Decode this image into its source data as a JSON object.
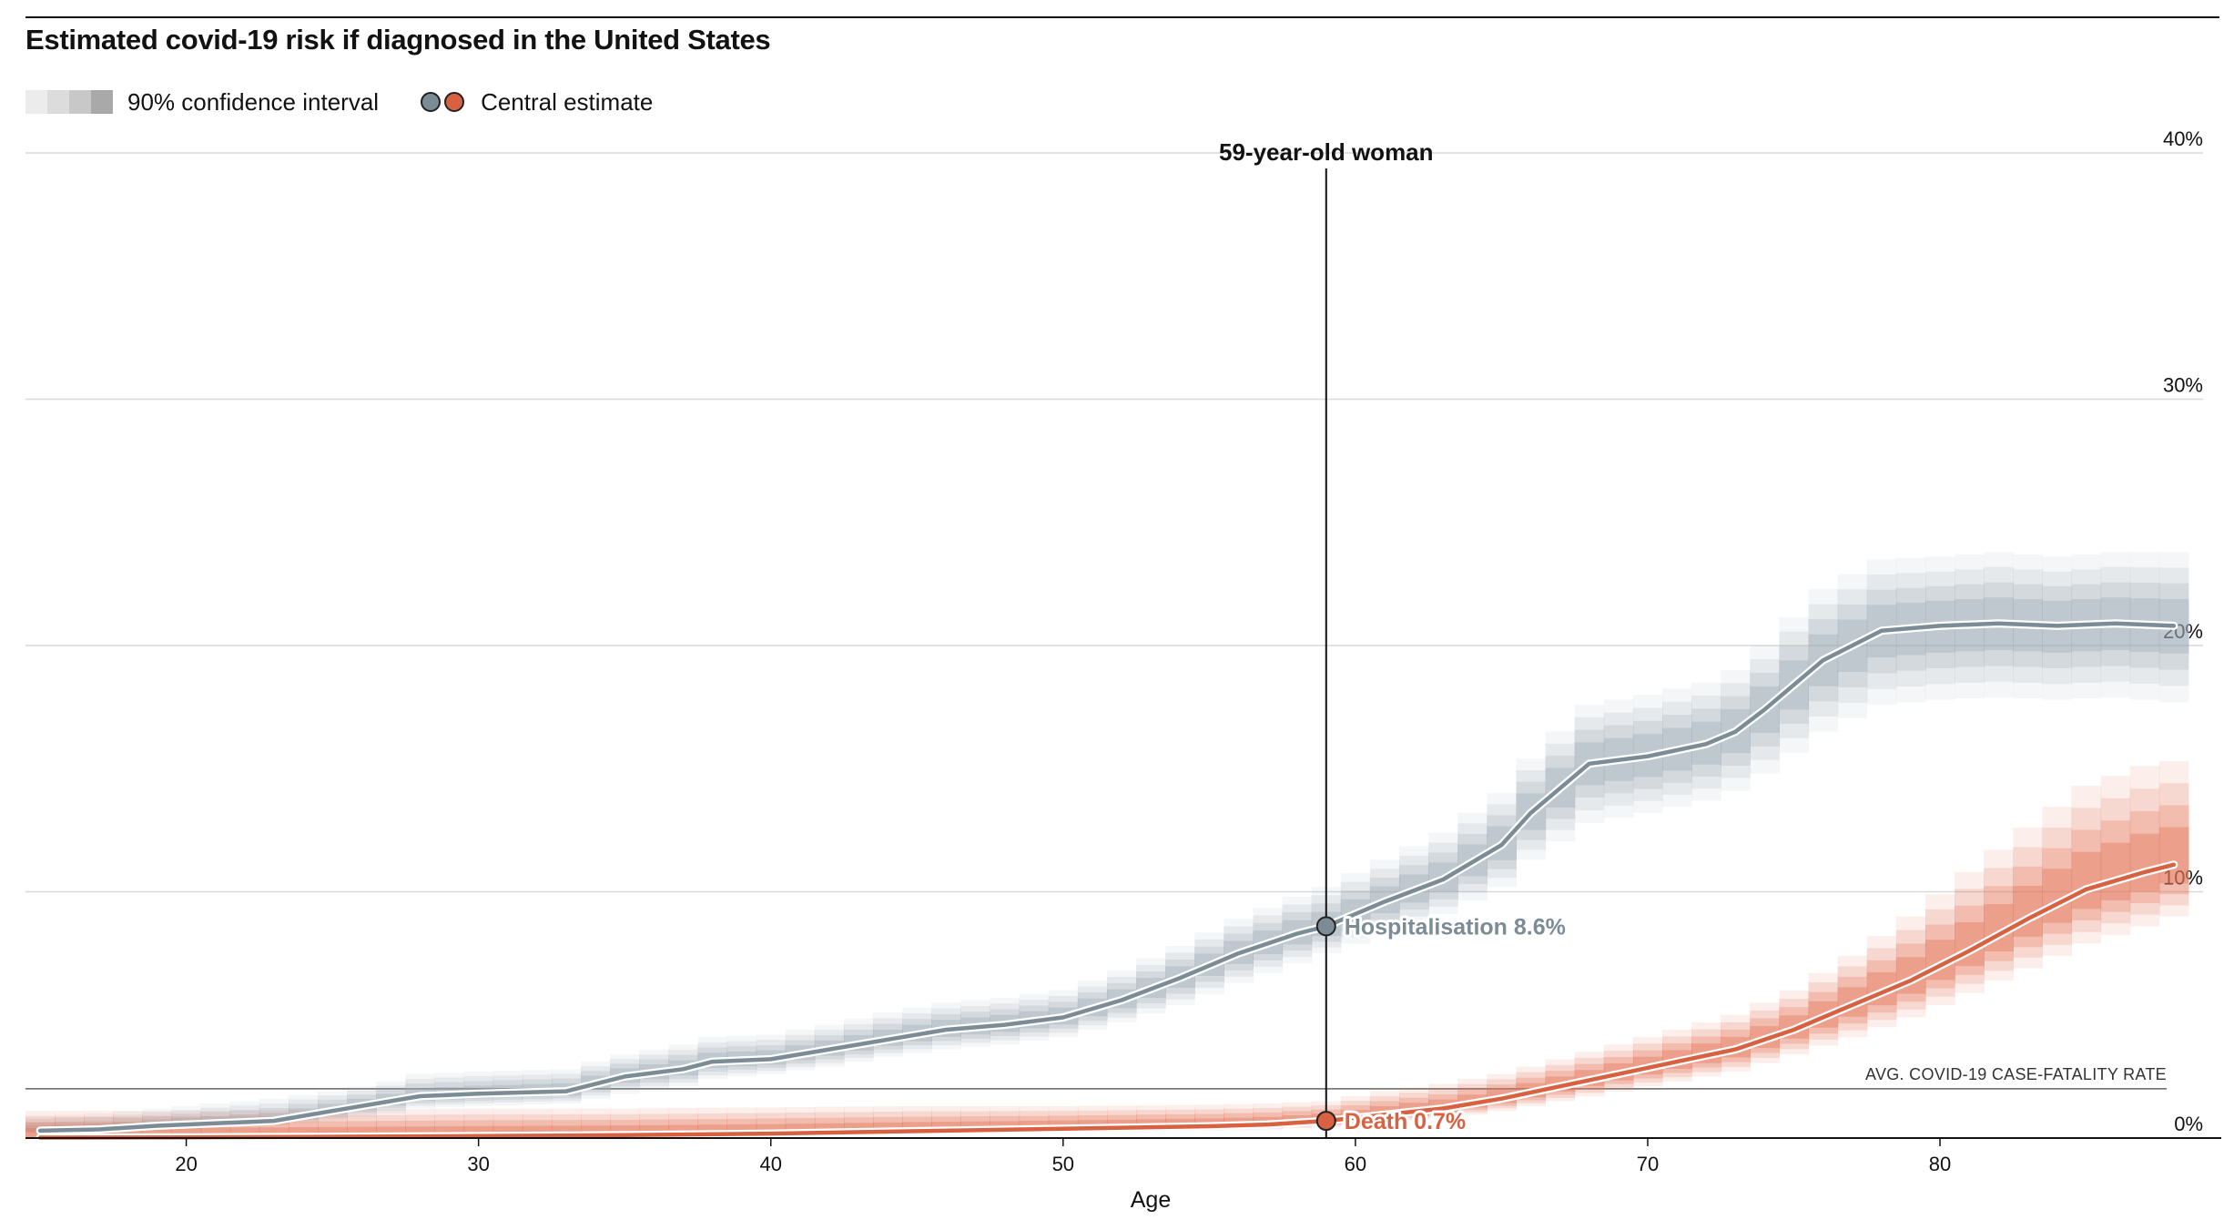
{
  "chart_data": {
    "type": "line",
    "title": "Estimated covid-19 risk if diagnosed in the United States",
    "xlabel": "Age",
    "ylabel": "",
    "xlim": [
      14.5,
      89
    ],
    "ylim": [
      0,
      40
    ],
    "x_ticks": [
      20,
      30,
      40,
      50,
      60,
      70,
      80
    ],
    "x_tick_labels": [
      "20",
      "30",
      "40",
      "50",
      "60",
      "70",
      "80"
    ],
    "y_ticks": [
      0,
      10,
      20,
      30,
      40
    ],
    "y_tick_labels": [
      "0%",
      "10%",
      "20%",
      "30%",
      "40%"
    ],
    "grid": "horizontal",
    "legend": {
      "position": "top-left",
      "ci_label": "90% confidence interval",
      "central_label": "Central estimate"
    },
    "marker": {
      "age": 59,
      "label": "59-year-old woman"
    },
    "reference_line": {
      "value": 2.0,
      "label": "AVG. COVID-19 CASE-FATALITY RATE"
    },
    "series": [
      {
        "name": "Hospitalisation",
        "annotation": "Hospitalisation 8.6%",
        "color": "#7b8c97",
        "band_color": "#9aa8b2",
        "x": [
          15,
          17,
          19,
          21,
          23,
          25,
          27,
          28,
          30,
          33,
          35,
          37,
          38,
          40,
          42,
          44,
          46,
          48,
          50,
          52,
          54,
          56,
          58,
          59,
          61,
          63,
          65,
          66,
          68,
          70,
          72,
          73,
          74,
          76,
          78,
          80,
          82,
          84,
          86,
          88
        ],
        "y": [
          0.3,
          0.35,
          0.5,
          0.6,
          0.7,
          1.1,
          1.5,
          1.7,
          1.8,
          1.9,
          2.5,
          2.8,
          3.1,
          3.2,
          3.6,
          4.0,
          4.4,
          4.6,
          4.9,
          5.6,
          6.5,
          7.5,
          8.3,
          8.6,
          9.6,
          10.5,
          11.9,
          13.2,
          15.2,
          15.5,
          16.0,
          16.5,
          17.4,
          19.4,
          20.6,
          20.8,
          20.9,
          20.8,
          20.9,
          20.8
        ],
        "ci_low": [
          0.2,
          0.2,
          0.3,
          0.4,
          0.5,
          0.7,
          1.0,
          1.2,
          1.3,
          1.4,
          1.8,
          2.1,
          2.4,
          2.6,
          2.9,
          3.3,
          3.6,
          3.8,
          4.1,
          4.7,
          5.4,
          6.3,
          7.1,
          7.5,
          8.3,
          9.1,
          10.2,
          11.3,
          12.8,
          13.2,
          13.7,
          14.1,
          14.8,
          16.5,
          17.6,
          17.8,
          17.9,
          17.8,
          17.9,
          17.7
        ],
        "ci_high": [
          0.9,
          1.0,
          1.2,
          1.4,
          1.6,
          1.9,
          2.3,
          2.6,
          2.7,
          2.8,
          3.4,
          3.8,
          4.1,
          4.2,
          4.6,
          5.1,
          5.5,
          5.7,
          6.0,
          6.8,
          7.8,
          8.9,
          9.8,
          10.2,
          11.3,
          12.4,
          14.0,
          15.4,
          17.6,
          18.0,
          18.5,
          19.0,
          20.0,
          22.3,
          23.5,
          23.6,
          23.8,
          23.6,
          23.8,
          23.8
        ]
      },
      {
        "name": "Death",
        "annotation": "Death 0.7%",
        "color": "#d86142",
        "band_color": "#e5765a",
        "x": [
          15,
          20,
          25,
          30,
          35,
          40,
          45,
          50,
          55,
          57,
          59,
          61,
          63,
          65,
          67,
          69,
          71,
          73,
          75,
          77,
          79,
          81,
          83,
          85,
          87,
          88
        ],
        "y": [
          0.02,
          0.03,
          0.05,
          0.08,
          0.12,
          0.18,
          0.28,
          0.38,
          0.48,
          0.55,
          0.7,
          0.95,
          1.2,
          1.6,
          2.1,
          2.6,
          3.1,
          3.6,
          4.4,
          5.4,
          6.4,
          7.6,
          8.9,
          10.1,
          10.8,
          11.1
        ],
        "ci_low": [
          0.0,
          0.01,
          0.02,
          0.04,
          0.06,
          0.1,
          0.16,
          0.23,
          0.3,
          0.35,
          0.45,
          0.62,
          0.8,
          1.1,
          1.5,
          1.9,
          2.3,
          2.7,
          3.4,
          4.1,
          4.9,
          5.9,
          6.9,
          7.9,
          8.6,
          9.0
        ],
        "ci_high": [
          1.1,
          1.1,
          1.15,
          1.2,
          1.2,
          1.25,
          1.3,
          1.3,
          1.35,
          1.4,
          1.5,
          1.9,
          2.2,
          2.6,
          3.2,
          3.8,
          4.4,
          5.0,
          6.0,
          7.4,
          9.0,
          10.8,
          12.6,
          14.3,
          15.1,
          15.3
        ]
      }
    ]
  }
}
